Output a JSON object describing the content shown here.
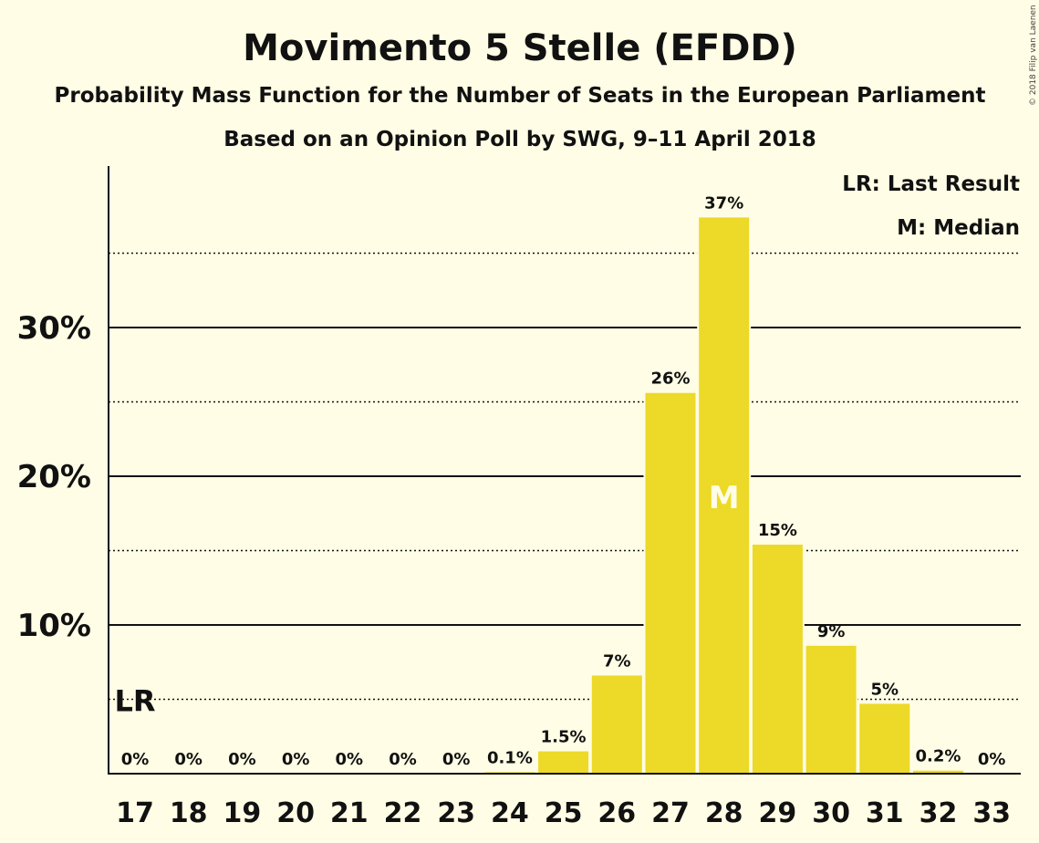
{
  "chart_data": {
    "type": "bar",
    "title": "Movimento 5 Stelle (EFDD)",
    "subtitle": "Probability Mass Function for the Number of Seats in the European Parliament",
    "subtitle2": "Based on an Opinion Poll by SWG, 9–11 April 2018",
    "copyright": "© 2018 Filip van Laenen",
    "categories": [
      "17",
      "18",
      "19",
      "20",
      "21",
      "22",
      "23",
      "24",
      "25",
      "26",
      "27",
      "28",
      "29",
      "30",
      "31",
      "32",
      "33"
    ],
    "values": [
      0,
      0,
      0,
      0,
      0,
      0,
      0,
      0.1,
      1.5,
      6.6,
      25.6,
      37.4,
      15.4,
      8.6,
      4.7,
      0.2,
      0
    ],
    "value_labels": [
      "0%",
      "0%",
      "0%",
      "0%",
      "0%",
      "0%",
      "0%",
      "0.1%",
      "1.5%",
      "7%",
      "26%",
      "37%",
      "15%",
      "9%",
      "5%",
      "0.2%",
      "0%"
    ],
    "ylim": [
      0,
      40
    ],
    "yticks": [
      {
        "value": 10,
        "label": "10%"
      },
      {
        "value": 20,
        "label": "20%"
      },
      {
        "value": 30,
        "label": "30%"
      }
    ],
    "dotted_gridlines": [
      5,
      15,
      25,
      35
    ],
    "bar_color": "#ecd928",
    "last_result": {
      "category": "17",
      "value": 5,
      "label": "LR"
    },
    "median": {
      "category": "28",
      "label": "M"
    },
    "legend": [
      "LR: Last Result",
      "M: Median"
    ],
    "legend_position": "top-right",
    "grid": true
  }
}
